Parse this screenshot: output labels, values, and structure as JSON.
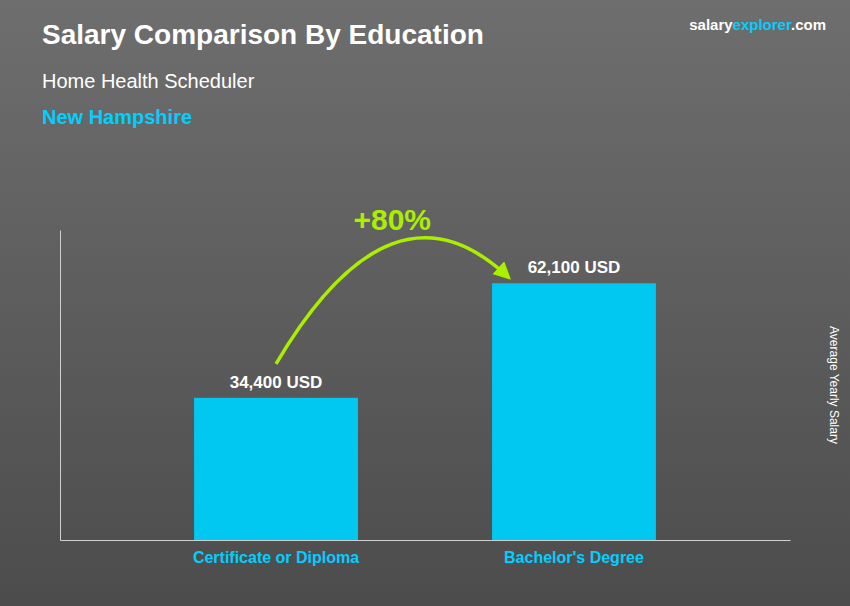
{
  "chart_data": {
    "type": "bar",
    "title": "Salary Comparison By Education",
    "subtitle": "Home Health Scheduler",
    "ylabel": "Average Yearly Salary",
    "annotations": [
      "New Hampshire",
      "salary",
      "explorer",
      ".com",
      "+80%"
    ],
    "categories": [
      "Certificate or Diploma",
      "Bachelor's Degree"
    ],
    "values": [
      34400,
      62100
    ],
    "value_labels": [
      "34,400 USD",
      "62,100 USD"
    ],
    "data_labels": true,
    "color": "#00C8F0",
    "ylim": [
      0,
      75000
    ],
    "tick_labels": "x",
    "grid": false
  }
}
